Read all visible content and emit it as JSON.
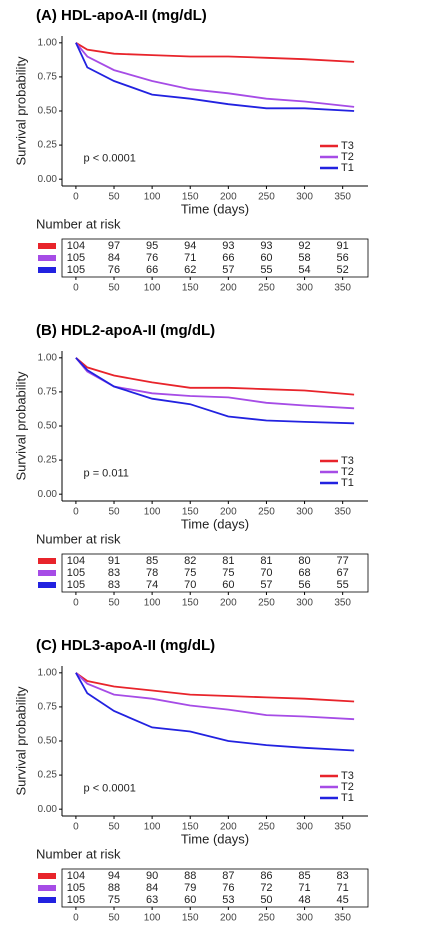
{
  "chart_data": [
    {
      "type": "line",
      "title": "(A)  HDL-apoA-II (mg/dL)",
      "x_label": "Time (days)",
      "y_label": "Survival probability",
      "annotation": "p < 0.0001",
      "x": [
        0,
        15,
        50,
        100,
        150,
        200,
        250,
        300,
        365
      ],
      "series": [
        {
          "name": "T3",
          "color": "#e8242b",
          "values": [
            1,
            0.95,
            0.92,
            0.91,
            0.9,
            0.9,
            0.89,
            0.88,
            0.86
          ]
        },
        {
          "name": "T2",
          "color": "#a64ce6",
          "values": [
            1,
            0.9,
            0.8,
            0.72,
            0.66,
            0.63,
            0.59,
            0.57,
            0.53
          ]
        },
        {
          "name": "T1",
          "color": "#2222e0",
          "values": [
            1,
            0.82,
            0.72,
            0.62,
            0.59,
            0.55,
            0.52,
            0.52,
            0.5
          ]
        }
      ],
      "xlim": [
        -18.25,
        383.25
      ],
      "ylim": [
        -0.05,
        1.05
      ],
      "xticks": [
        0,
        50,
        100,
        150,
        200,
        250,
        300,
        350
      ],
      "yticks": [
        {
          "value": 0,
          "label": "0.00"
        },
        {
          "value": 0.25,
          "label": "0.25"
        },
        {
          "value": 0.5,
          "label": "0.50"
        },
        {
          "value": 0.75,
          "label": "0.75"
        },
        {
          "value": 1,
          "label": "1.00"
        }
      ],
      "legend": "bottom-right",
      "risk_table": {
        "title": "Number at risk",
        "rows": [
          [
            104,
            97,
            95,
            94,
            93,
            93,
            92,
            91
          ],
          [
            105,
            84,
            76,
            71,
            66,
            60,
            58,
            56
          ],
          [
            105,
            76,
            66,
            62,
            57,
            55,
            54,
            52
          ]
        ]
      }
    },
    {
      "type": "line",
      "title": "(B)  HDL2-apoA-II (mg/dL)",
      "x_label": "Time (days)",
      "y_label": "Survival probability",
      "annotation": "p = 0.011",
      "x": [
        0,
        15,
        50,
        100,
        150,
        200,
        250,
        300,
        365
      ],
      "series": [
        {
          "name": "T3",
          "color": "#e8242b",
          "values": [
            1,
            0.93,
            0.87,
            0.82,
            0.78,
            0.78,
            0.77,
            0.76,
            0.73
          ]
        },
        {
          "name": "T2",
          "color": "#a64ce6",
          "values": [
            1,
            0.9,
            0.79,
            0.74,
            0.72,
            0.71,
            0.67,
            0.65,
            0.63
          ]
        },
        {
          "name": "T1",
          "color": "#2222e0",
          "values": [
            1,
            0.91,
            0.79,
            0.7,
            0.66,
            0.57,
            0.54,
            0.53,
            0.52
          ]
        }
      ],
      "xlim": [
        -18.25,
        383.25
      ],
      "ylim": [
        -0.05,
        1.05
      ],
      "xticks": [
        0,
        50,
        100,
        150,
        200,
        250,
        300,
        350
      ],
      "yticks": [
        {
          "value": 0,
          "label": "0.00"
        },
        {
          "value": 0.25,
          "label": "0.25"
        },
        {
          "value": 0.5,
          "label": "0.50"
        },
        {
          "value": 0.75,
          "label": "0.75"
        },
        {
          "value": 1,
          "label": "1.00"
        }
      ],
      "legend": "bottom-right",
      "risk_table": {
        "title": "Number at risk",
        "rows": [
          [
            104,
            91,
            85,
            82,
            81,
            81,
            80,
            77
          ],
          [
            105,
            83,
            78,
            75,
            75,
            70,
            68,
            67
          ],
          [
            105,
            83,
            74,
            70,
            60,
            57,
            56,
            55
          ]
        ]
      }
    },
    {
      "type": "line",
      "title": "(C)  HDL3-apoA-II (mg/dL)",
      "x_label": "Time (days)",
      "y_label": "Survival probability",
      "annotation": "p < 0.0001",
      "x": [
        0,
        15,
        50,
        100,
        150,
        200,
        250,
        300,
        365
      ],
      "series": [
        {
          "name": "T3",
          "color": "#e8242b",
          "values": [
            1,
            0.94,
            0.9,
            0.87,
            0.84,
            0.83,
            0.82,
            0.81,
            0.79
          ]
        },
        {
          "name": "T2",
          "color": "#a64ce6",
          "values": [
            1,
            0.92,
            0.84,
            0.81,
            0.76,
            0.73,
            0.69,
            0.68,
            0.66
          ]
        },
        {
          "name": "T1",
          "color": "#2222e0",
          "values": [
            1,
            0.85,
            0.72,
            0.6,
            0.57,
            0.5,
            0.47,
            0.45,
            0.43
          ]
        }
      ],
      "xlim": [
        -18.25,
        383.25
      ],
      "ylim": [
        -0.05,
        1.05
      ],
      "xticks": [
        0,
        50,
        100,
        150,
        200,
        250,
        300,
        350
      ],
      "yticks": [
        {
          "value": 0,
          "label": "0.00"
        },
        {
          "value": 0.25,
          "label": "0.25"
        },
        {
          "value": 0.5,
          "label": "0.50"
        },
        {
          "value": 0.75,
          "label": "0.75"
        },
        {
          "value": 1,
          "label": "1.00"
        }
      ],
      "legend": "bottom-right",
      "risk_table": {
        "title": "Number at risk",
        "rows": [
          [
            104,
            94,
            90,
            88,
            87,
            86,
            85,
            83
          ],
          [
            105,
            88,
            84,
            79,
            76,
            72,
            71,
            71
          ],
          [
            105,
            75,
            63,
            60,
            53,
            50,
            48,
            45
          ]
        ]
      }
    }
  ]
}
